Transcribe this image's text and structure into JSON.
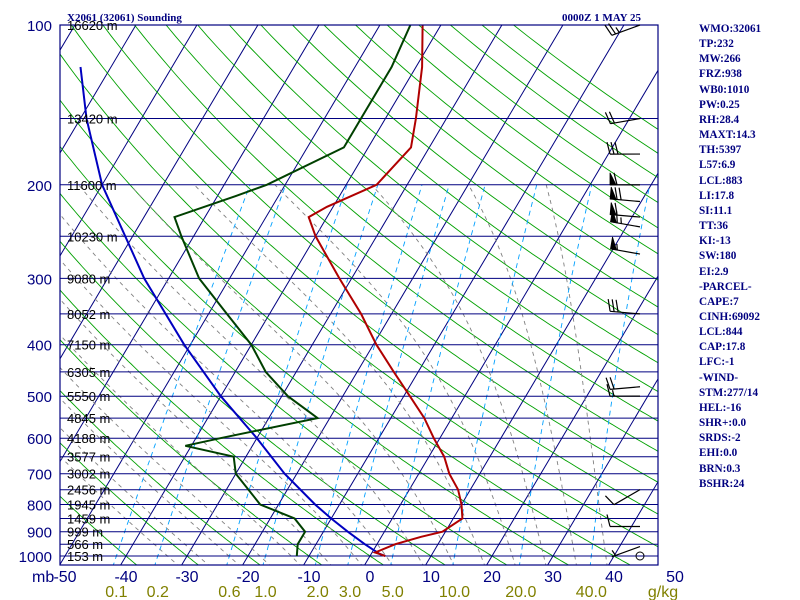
{
  "header": {
    "station": "X2061 (32061) Sounding",
    "time": "0000Z  1 MAY 25"
  },
  "indices": [
    "WMO:32061",
    "TP:232",
    "MW:266",
    "FRZ:938",
    "WB0:1010",
    "PW:0.25",
    "RH:28.4",
    "MAXT:14.3",
    "TH:5397",
    "L57:6.9",
    "LCL:883",
    "LI:17.8",
    "SI:11.1",
    "TT:36",
    "KI:-13",
    "SW:180",
    "EI:2.9",
    "-PARCEL-",
    "CAPE:7",
    "CINH:69092",
    "LCL:844",
    "CAP:17.8",
    "LFC:-1",
    "-WIND-",
    "STM:277/14",
    "HEL:-16",
    "SHR+:0.0",
    "SRDS:-2",
    "EHI:0.0",
    "BRN:0.3",
    "BSHR:24"
  ],
  "chart_data": {
    "type": "skew-t log-p sounding",
    "y_unit_label": "mb",
    "pressure_ticks": [
      "100",
      "200",
      "300",
      "400",
      "500",
      "600",
      "700",
      "800",
      "900",
      "1000"
    ],
    "pressure_levels": [
      100,
      200,
      300,
      400,
      500,
      600,
      700,
      800,
      900,
      1000
    ],
    "height_labels": [
      {
        "p": 100,
        "label": "16620 m"
      },
      {
        "p": 150,
        "label": "13420 m"
      },
      {
        "p": 200,
        "label": "11600 m"
      },
      {
        "p": 250,
        "label": "10230 m"
      },
      {
        "p": 300,
        "label": "9080 m"
      },
      {
        "p": 350,
        "label": "8052 m"
      },
      {
        "p": 400,
        "label": "7150 m"
      },
      {
        "p": 450,
        "label": "6305 m"
      },
      {
        "p": 500,
        "label": "5550 m"
      },
      {
        "p": 550,
        "label": "4845 m"
      },
      {
        "p": 600,
        "label": "4188 m"
      },
      {
        "p": 650,
        "label": "3577 m"
      },
      {
        "p": 700,
        "label": "3002 m"
      },
      {
        "p": 750,
        "label": "2456 m"
      },
      {
        "p": 800,
        "label": "1945 m"
      },
      {
        "p": 850,
        "label": "1459 m"
      },
      {
        "p": 900,
        "label": "999 m"
      },
      {
        "p": 950,
        "label": "566 m"
      },
      {
        "p": 1000,
        "label": "153 m"
      }
    ],
    "temperature_ticks": [
      "-50",
      "-40",
      "-30",
      "-20",
      "-10",
      "0",
      "10",
      "20",
      "30",
      "40",
      "50"
    ],
    "temperature_values": [
      -50,
      -40,
      -30,
      -20,
      -10,
      0,
      10,
      20,
      30,
      40,
      50
    ],
    "mixing_ratio_ticks": [
      {
        "w": 0.1,
        "label": "0.1"
      },
      {
        "w": 0.2,
        "label": "0.2"
      },
      {
        "w": 0.6,
        "label": "0.6"
      },
      {
        "w": 1.0,
        "label": "1.0"
      },
      {
        "w": 2.0,
        "label": "2.0"
      },
      {
        "w": 3.0,
        "label": "3.0"
      },
      {
        "w": 5.0,
        "label": "5.0"
      },
      {
        "w": 10.0,
        "label": "10.0"
      },
      {
        "w": 20.0,
        "label": "20.0"
      },
      {
        "w": 40.0,
        "label": "40.0"
      }
    ],
    "mixing_ratio_unit": "g/kg",
    "temperature_profile": [
      {
        "p": 1000,
        "t": 2.5
      },
      {
        "p": 985,
        "t": 0.5
      },
      {
        "p": 950,
        "t": 3.0
      },
      {
        "p": 920,
        "t": 6.5
      },
      {
        "p": 900,
        "t": 9.5
      },
      {
        "p": 850,
        "t": 11.5
      },
      {
        "p": 800,
        "t": 10.0
      },
      {
        "p": 750,
        "t": 8.0
      },
      {
        "p": 700,
        "t": 5.0
      },
      {
        "p": 650,
        "t": 2.5
      },
      {
        "p": 600,
        "t": -1.0
      },
      {
        "p": 550,
        "t": -4.5
      },
      {
        "p": 500,
        "t": -9.0
      },
      {
        "p": 450,
        "t": -14.0
      },
      {
        "p": 400,
        "t": -19.5
      },
      {
        "p": 350,
        "t": -25.0
      },
      {
        "p": 300,
        "t": -32.0
      },
      {
        "p": 250,
        "t": -40.0
      },
      {
        "p": 230,
        "t": -43.0
      },
      {
        "p": 220,
        "t": -41.0
      },
      {
        "p": 200,
        "t": -35.0
      },
      {
        "p": 170,
        "t": -33.0
      },
      {
        "p": 150,
        "t": -35.0
      },
      {
        "p": 120,
        "t": -39.0
      },
      {
        "p": 100,
        "t": -43.0
      }
    ],
    "dewpoint_profile": [
      {
        "p": 1000,
        "t": -12.0
      },
      {
        "p": 950,
        "t": -13.0
      },
      {
        "p": 900,
        "t": -13.0
      },
      {
        "p": 850,
        "t": -16.0
      },
      {
        "p": 800,
        "t": -23.0
      },
      {
        "p": 700,
        "t": -30.0
      },
      {
        "p": 650,
        "t": -32.0
      },
      {
        "p": 620,
        "t": -41.0
      },
      {
        "p": 600,
        "t": -36.0
      },
      {
        "p": 550,
        "t": -22.0
      },
      {
        "p": 500,
        "t": -29.0
      },
      {
        "p": 450,
        "t": -35.0
      },
      {
        "p": 400,
        "t": -40.0
      },
      {
        "p": 350,
        "t": -47.0
      },
      {
        "p": 300,
        "t": -55.0
      },
      {
        "p": 250,
        "t": -62.0
      },
      {
        "p": 230,
        "t": -65.0
      },
      {
        "p": 210,
        "t": -57.0
      },
      {
        "p": 200,
        "t": -53.0
      },
      {
        "p": 170,
        "t": -44.0
      },
      {
        "p": 150,
        "t": -44.0
      },
      {
        "p": 120,
        "t": -44.0
      },
      {
        "p": 100,
        "t": -45.0
      }
    ],
    "parcel_path": [
      {
        "p": 1000,
        "t": 2.5
      },
      {
        "p": 990,
        "t": 1.3
      },
      {
        "p": 950,
        "t": -2.0
      },
      {
        "p": 900,
        "t": -6.0
      },
      {
        "p": 850,
        "t": -10.0
      },
      {
        "p": 800,
        "t": -14.0
      },
      {
        "p": 700,
        "t": -22.0
      },
      {
        "p": 600,
        "t": -30.0
      },
      {
        "p": 500,
        "t": -40.0
      },
      {
        "p": 400,
        "t": -51.0
      },
      {
        "p": 300,
        "t": -64.0
      },
      {
        "p": 200,
        "t": -80.0
      },
      {
        "p": 150,
        "t": -89.0
      },
      {
        "p": 120,
        "t": -95.0
      }
    ],
    "wind_barbs": [
      {
        "p": 100,
        "dir": 250,
        "spd": 25
      },
      {
        "p": 150,
        "dir": 260,
        "spd": 20
      },
      {
        "p": 175,
        "dir": 270,
        "spd": 30
      },
      {
        "p": 200,
        "dir": 270,
        "spd": 60
      },
      {
        "p": 215,
        "dir": 275,
        "spd": 70
      },
      {
        "p": 230,
        "dir": 275,
        "spd": 60
      },
      {
        "p": 240,
        "dir": 280,
        "spd": 65
      },
      {
        "p": 270,
        "dir": 280,
        "spd": 55
      },
      {
        "p": 350,
        "dir": 275,
        "spd": 30
      },
      {
        "p": 480,
        "dir": 265,
        "spd": 20
      },
      {
        "p": 500,
        "dir": 270,
        "spd": 15
      },
      {
        "p": 750,
        "dir": 240,
        "spd": 10
      },
      {
        "p": 880,
        "dir": 270,
        "spd": 10
      },
      {
        "p": 960,
        "dir": 250,
        "spd": 5
      },
      {
        "p": 1000,
        "dir": 0,
        "spd": 0
      }
    ],
    "colors": {
      "frame": "#000080",
      "isobar": "#000080",
      "isotherm": "#000080",
      "dry_adiabat": "#00a000",
      "moist_adiabat": "#808080",
      "mixing_ratio": "#00a0ff",
      "temperature": "#b00000",
      "dewpoint": "#004000",
      "parcel": "#0000c0",
      "wind_barb": "#000000",
      "mixing_ratio_label": "#808000"
    }
  }
}
